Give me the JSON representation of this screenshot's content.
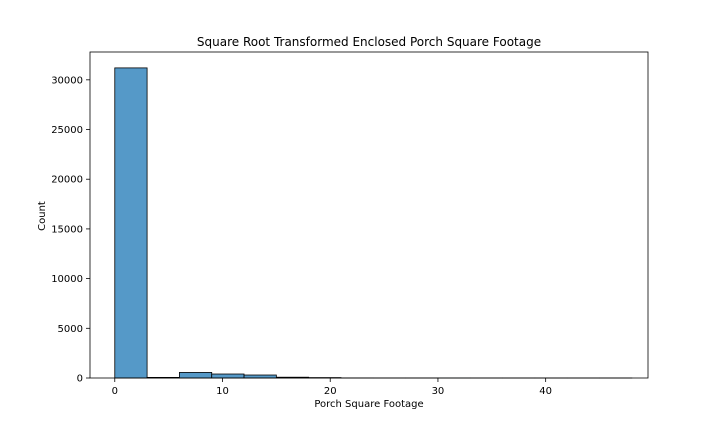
{
  "chart_data": {
    "type": "bar",
    "title": "Square Root Transformed Enclosed Porch Square Footage",
    "xlabel": "Porch Square Footage",
    "ylabel": "Count",
    "xlim": [
      -2.3,
      49.5
    ],
    "ylim": [
      0,
      32800
    ],
    "xticks": [
      0,
      10,
      20,
      30,
      40
    ],
    "yticks": [
      0,
      5000,
      10000,
      15000,
      20000,
      25000,
      30000
    ],
    "bar_color": "#5599c8",
    "edge_color": "#000000",
    "bin_width": 3.0,
    "bins": [
      {
        "x0": 0.0,
        "x1": 3.0,
        "count": 31200
      },
      {
        "x0": 3.0,
        "x1": 6.0,
        "count": 60
      },
      {
        "x0": 6.0,
        "x1": 9.0,
        "count": 560
      },
      {
        "x0": 9.0,
        "x1": 12.0,
        "count": 400
      },
      {
        "x0": 12.0,
        "x1": 15.0,
        "count": 300
      },
      {
        "x0": 15.0,
        "x1": 18.0,
        "count": 80
      },
      {
        "x0": 18.0,
        "x1": 21.0,
        "count": 40
      },
      {
        "x0": 21.0,
        "x1": 24.0,
        "count": 10
      },
      {
        "x0": 24.0,
        "x1": 27.0,
        "count": 5
      },
      {
        "x0": 27.0,
        "x1": 30.0,
        "count": 3
      },
      {
        "x0": 30.0,
        "x1": 33.0,
        "count": 2
      },
      {
        "x0": 33.0,
        "x1": 36.0,
        "count": 1
      },
      {
        "x0": 36.0,
        "x1": 39.0,
        "count": 1
      },
      {
        "x0": 39.0,
        "x1": 42.0,
        "count": 1
      },
      {
        "x0": 42.0,
        "x1": 45.0,
        "count": 1
      },
      {
        "x0": 45.0,
        "x1": 48.0,
        "count": 1
      }
    ]
  }
}
